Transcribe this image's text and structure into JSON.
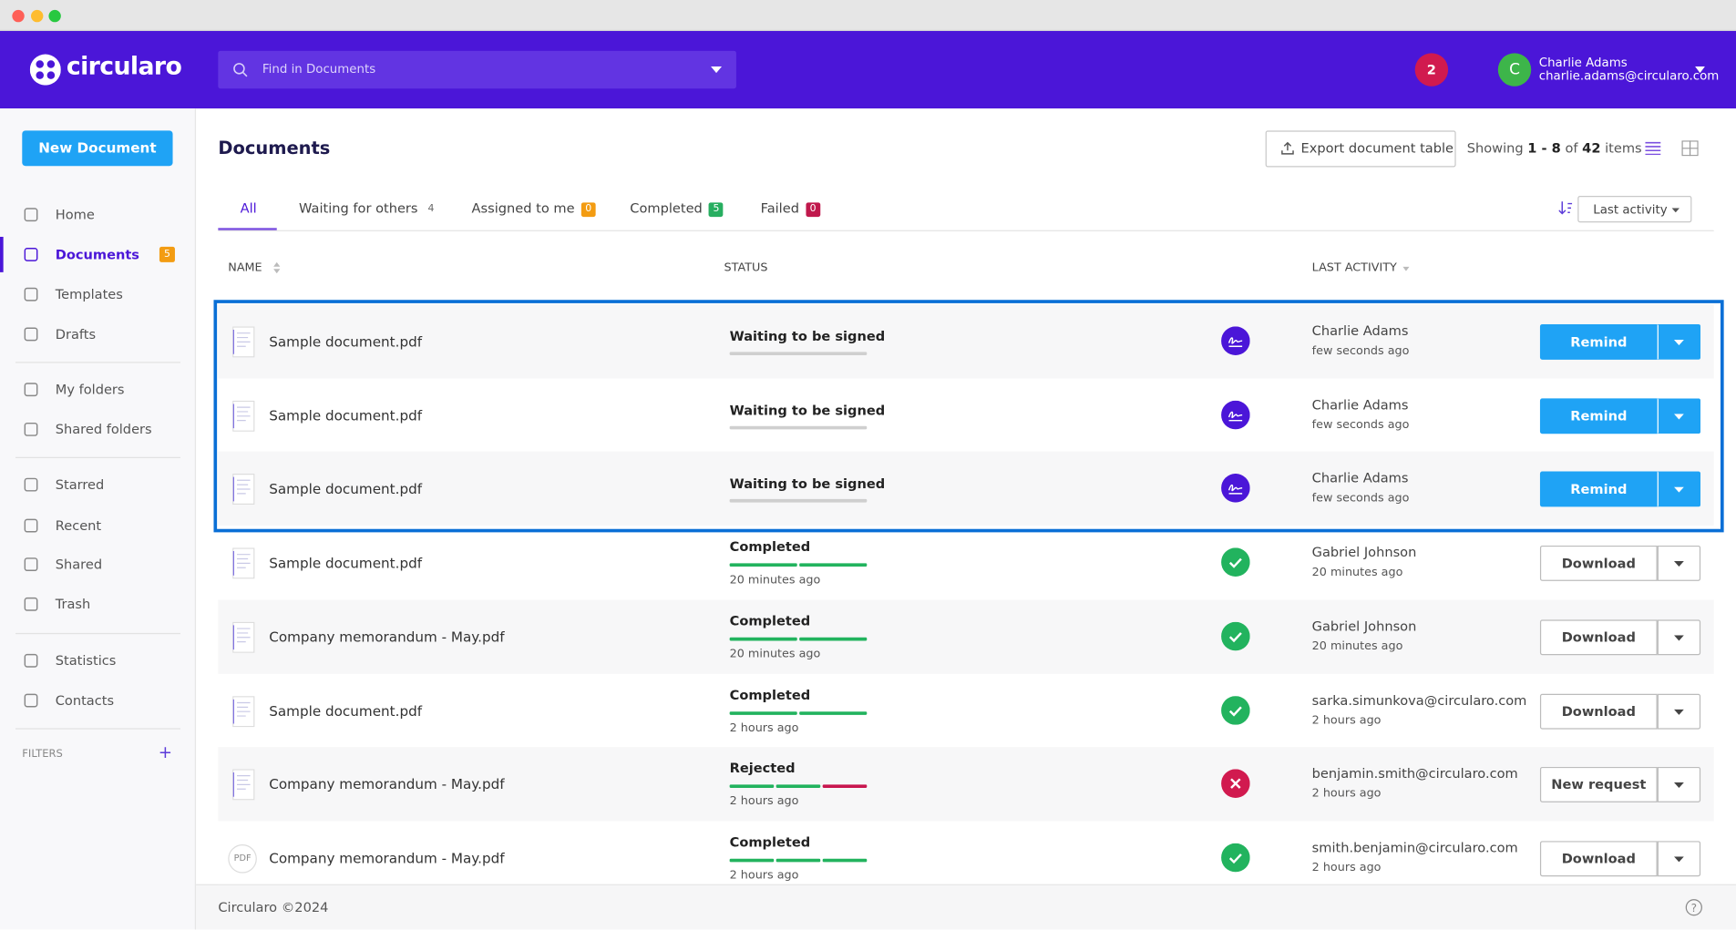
{
  "header": {
    "logo": "circularo",
    "search_placeholder": "Find in Documents",
    "notifications": "2",
    "user": {
      "initial": "C",
      "name": "Charlie Adams",
      "email": "charlie.adams@circularo.com"
    }
  },
  "sidebar": {
    "new_button": "New Document",
    "nav": [
      {
        "label": "Home"
      },
      {
        "label": "Documents",
        "badge": "5",
        "active": true
      },
      {
        "label": "Templates"
      },
      {
        "label": "Drafts"
      },
      {
        "label": "My folders"
      },
      {
        "label": "Shared folders"
      },
      {
        "label": "Starred"
      },
      {
        "label": "Recent"
      },
      {
        "label": "Shared"
      },
      {
        "label": "Trash"
      },
      {
        "label": "Statistics"
      },
      {
        "label": "Contacts"
      }
    ],
    "filters": "FILTERS"
  },
  "main": {
    "title": "Documents",
    "export": "Export document table",
    "showing": {
      "prefix": "Showing",
      "range": "1 - 8",
      "of": "of",
      "total": "42",
      "suffix": "items"
    },
    "tabs": [
      {
        "label": "All",
        "active": true
      },
      {
        "label": "Waiting for others",
        "count": "4"
      },
      {
        "label": "Assigned to me",
        "count": "0",
        "color": "#f39c12"
      },
      {
        "label": "Completed",
        "count": "5",
        "color": "#27ae60"
      },
      {
        "label": "Failed",
        "count": "0",
        "color": "#c0184c"
      }
    ],
    "sort": "Last activity",
    "columns": [
      "NAME",
      "STATUS",
      "LAST ACTIVITY"
    ],
    "rows": [
      {
        "name": "Sample document.pdf",
        "status": "Waiting to be signed",
        "progress": [
          "#cfcfcf"
        ],
        "icon": "sign",
        "user": "Charlie Adams",
        "user_time": "few seconds ago",
        "action": "Remind"
      },
      {
        "name": "Sample document.pdf",
        "status": "Waiting to be signed",
        "progress": [
          "#cfcfcf"
        ],
        "icon": "sign",
        "user": "Charlie Adams",
        "user_time": "few seconds ago",
        "action": "Remind"
      },
      {
        "name": "Sample document.pdf",
        "status": "Waiting to be signed",
        "progress": [
          "#cfcfcf"
        ],
        "icon": "sign",
        "user": "Charlie Adams",
        "user_time": "few seconds ago",
        "action": "Remind"
      },
      {
        "name": "Sample document.pdf",
        "status": "Completed",
        "status_time": "20 minutes ago",
        "progress": [
          "#22b35e",
          "#22b35e"
        ],
        "icon": "check",
        "user": "Gabriel Johnson",
        "user_time": "20 minutes ago",
        "action": "Download"
      },
      {
        "name": "Company memorandum - May.pdf",
        "status": "Completed",
        "status_time": "20 minutes ago",
        "progress": [
          "#22b35e",
          "#22b35e"
        ],
        "icon": "check",
        "user": "Gabriel Johnson",
        "user_time": "20 minutes ago",
        "action": "Download"
      },
      {
        "name": "Sample document.pdf",
        "status": "Completed",
        "status_time": "2 hours ago",
        "progress": [
          "#22b35e",
          "#22b35e"
        ],
        "icon": "check",
        "user": "sarka.simunkova@circularo.com",
        "user_time": "2 hours ago",
        "action": "Download"
      },
      {
        "name": "Company memorandum - May.pdf",
        "status": "Rejected",
        "status_time": "2 hours ago",
        "progress": [
          "#22b35e",
          "#22b35e",
          "#c8174f"
        ],
        "icon": "cross",
        "user": "benjamin.smith@circularo.com",
        "user_time": "2 hours ago",
        "action": "New request"
      },
      {
        "name": "Company memorandum - May.pdf",
        "thumb_label": "PDF",
        "status": "Completed",
        "status_time": "2 hours ago",
        "progress": [
          "#22b35e",
          "#22b35e",
          "#22b35e"
        ],
        "icon": "check",
        "user": "smith.benjamin@circularo.com",
        "user_time": "2 hours ago",
        "action": "Download"
      }
    ]
  },
  "footer": {
    "copyright": "Circularo ©2024"
  }
}
